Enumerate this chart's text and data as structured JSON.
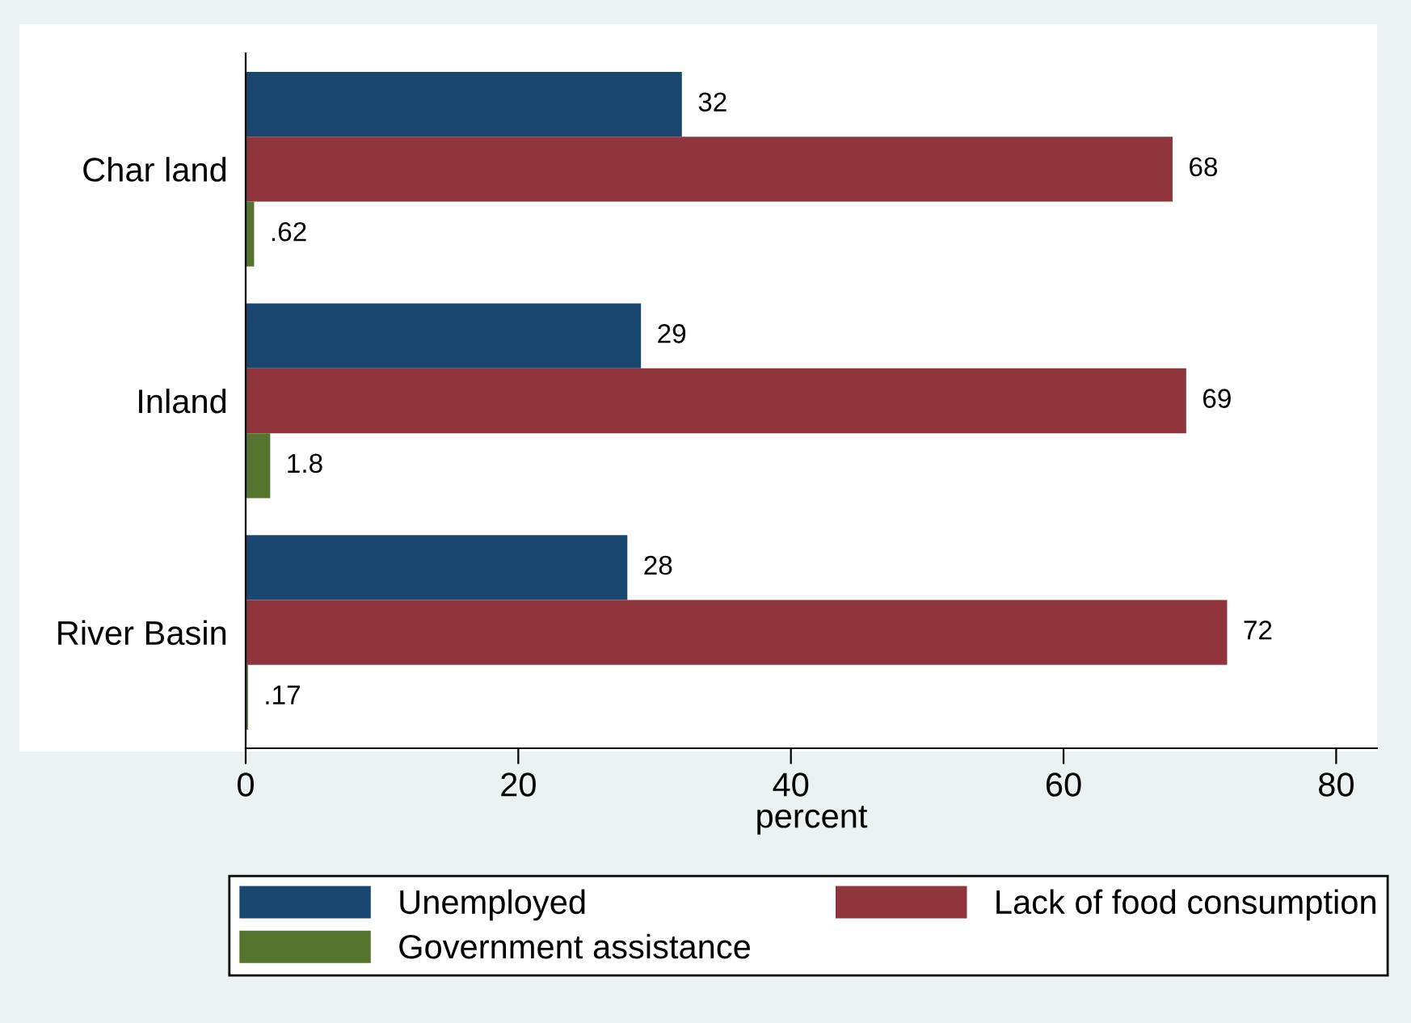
{
  "chart_data": {
    "type": "bar",
    "orientation": "horizontal",
    "xlabel": "percent",
    "categories": [
      "Char land",
      "Inland",
      "River Basin"
    ],
    "series": [
      {
        "name": "Unemployed",
        "color": "#1a476f",
        "values": [
          32,
          29,
          28
        ],
        "value_labels": [
          "32",
          "29",
          "28"
        ]
      },
      {
        "name": "Lack of food consumption",
        "color": "#90353b",
        "values": [
          68,
          69,
          72
        ],
        "value_labels": [
          "68",
          "69",
          "72"
        ]
      },
      {
        "name": "Government assistance",
        "color": "#55752f",
        "values": [
          0.62,
          1.8,
          0.17
        ],
        "value_labels": [
          ".62",
          "1.8",
          ".17"
        ]
      }
    ],
    "xlim": [
      0,
      83
    ],
    "xticks": [
      0,
      20,
      40,
      60,
      80
    ],
    "legend": "bottom"
  }
}
